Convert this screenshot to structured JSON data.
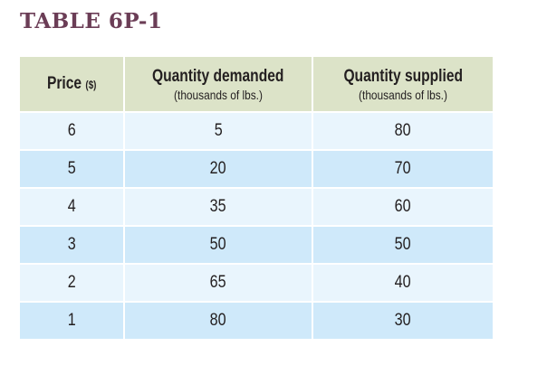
{
  "title": "TABLE 6P-1",
  "table": {
    "headers": [
      {
        "main": "Price",
        "unit": "($)",
        "sub": ""
      },
      {
        "main": "Quantity demanded",
        "sub": "(thousands of lbs.)"
      },
      {
        "main": "Quantity supplied",
        "sub": "(thousands of lbs.)"
      }
    ],
    "rows": [
      [
        "6",
        "5",
        "80"
      ],
      [
        "5",
        "20",
        "70"
      ],
      [
        "4",
        "35",
        "60"
      ],
      [
        "3",
        "50",
        "50"
      ],
      [
        "2",
        "65",
        "40"
      ],
      [
        "1",
        "80",
        "30"
      ]
    ]
  },
  "colors": {
    "title": "#6b3d56",
    "header_bg": "#dce3c8",
    "row_light": "#e9f5fd",
    "row_dark": "#cfe9fa"
  }
}
